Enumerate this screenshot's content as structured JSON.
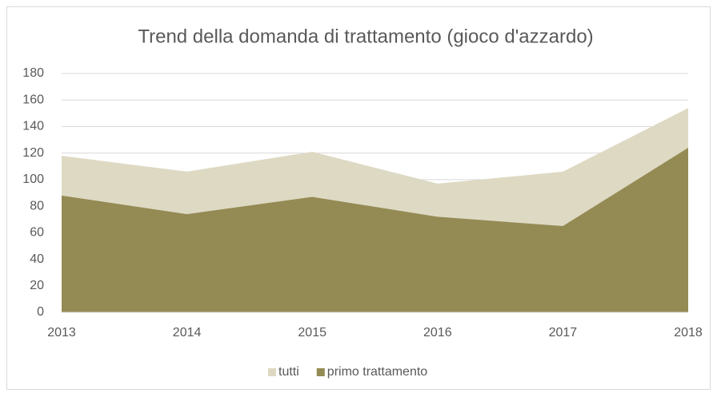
{
  "chart_data": {
    "type": "area",
    "title": "Trend della domanda di trattamento (gioco d'azzardo)",
    "categories": [
      "2013",
      "2014",
      "2015",
      "2016",
      "2017",
      "2018"
    ],
    "series": [
      {
        "name": "tutti",
        "color": "#ddd9c3",
        "values": [
          118,
          106,
          121,
          97,
          106,
          154
        ]
      },
      {
        "name": "primo trattamento",
        "color": "#948a54",
        "values": [
          88,
          74,
          87,
          72,
          65,
          124
        ]
      }
    ],
    "ylim": [
      0,
      180
    ],
    "yticks": [
      0,
      20,
      40,
      60,
      80,
      100,
      120,
      140,
      160,
      180
    ],
    "grid": true,
    "legend": "bottom"
  }
}
